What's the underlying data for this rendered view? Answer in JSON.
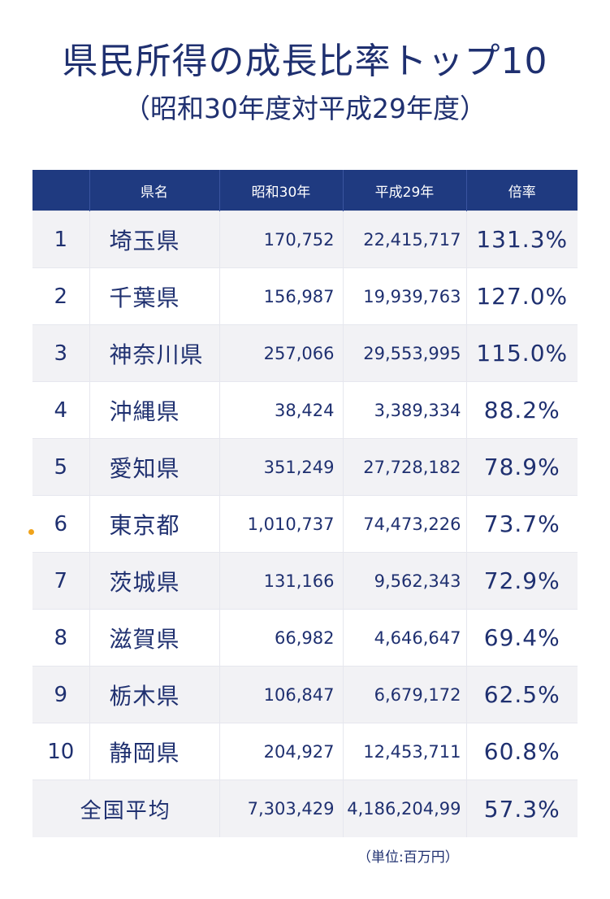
{
  "title": "県民所得の成長比率トップ10",
  "subtitle": "（昭和30年度対平成29年度）",
  "unit_note": "（単位:百万円）",
  "colors": {
    "header_bg": "#1f3a80",
    "text": "#1f3070",
    "row_alt": "#f2f2f5",
    "dot": "#f0a31a"
  },
  "chart_data": {
    "type": "table",
    "columns": [
      "",
      "県名",
      "昭和30年",
      "平成29年",
      "倍率"
    ],
    "rows": [
      {
        "rank": "1",
        "pref": "埼玉県",
        "s30": "170,752",
        "h29": "22,415,717",
        "ratio": "131.3%"
      },
      {
        "rank": "2",
        "pref": "千葉県",
        "s30": "156,987",
        "h29": "19,939,763",
        "ratio": "127.0%"
      },
      {
        "rank": "3",
        "pref": "神奈川県",
        "s30": "257,066",
        "h29": "29,553,995",
        "ratio": "115.0%"
      },
      {
        "rank": "4",
        "pref": "沖縄県",
        "s30": "38,424",
        "h29": "3,389,334",
        "ratio": "88.2%"
      },
      {
        "rank": "5",
        "pref": "愛知県",
        "s30": "351,249",
        "h29": "27,728,182",
        "ratio": "78.9%"
      },
      {
        "rank": "6",
        "pref": "東京都",
        "s30": "1,010,737",
        "h29": "74,473,226",
        "ratio": "73.7%"
      },
      {
        "rank": "7",
        "pref": "茨城県",
        "s30": "131,166",
        "h29": "9,562,343",
        "ratio": "72.9%"
      },
      {
        "rank": "8",
        "pref": "滋賀県",
        "s30": "66,982",
        "h29": "4,646,647",
        "ratio": "69.4%"
      },
      {
        "rank": "9",
        "pref": "栃木県",
        "s30": "106,847",
        "h29": "6,679,172",
        "ratio": "62.5%"
      },
      {
        "rank": "10",
        "pref": "静岡県",
        "s30": "204,927",
        "h29": "12,453,711",
        "ratio": "60.8%"
      }
    ],
    "average": {
      "label": "全国平均",
      "s30": "7,303,429",
      "h29": "4,186,204,99",
      "ratio": "57.3%"
    }
  }
}
